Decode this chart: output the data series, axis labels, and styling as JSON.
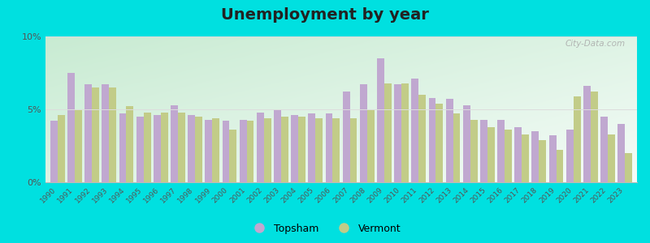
{
  "title": "Unemployment by year",
  "years": [
    1990,
    1991,
    1992,
    1993,
    1994,
    1995,
    1996,
    1997,
    1998,
    1999,
    2000,
    2001,
    2002,
    2003,
    2004,
    2005,
    2006,
    2007,
    2008,
    2009,
    2010,
    2011,
    2012,
    2013,
    2014,
    2015,
    2016,
    2017,
    2018,
    2019,
    2020,
    2021,
    2022,
    2023
  ],
  "topsham": [
    4.2,
    7.5,
    6.7,
    6.7,
    4.7,
    4.5,
    4.6,
    5.3,
    4.6,
    4.3,
    4.2,
    4.3,
    4.8,
    5.0,
    4.6,
    4.7,
    4.7,
    6.2,
    6.7,
    8.5,
    6.7,
    7.1,
    5.8,
    5.7,
    5.3,
    4.3,
    4.3,
    3.8,
    3.5,
    3.2,
    3.6,
    6.6,
    4.5,
    4.0
  ],
  "vermont": [
    4.6,
    5.0,
    6.5,
    6.5,
    5.2,
    4.8,
    4.8,
    4.8,
    4.5,
    4.4,
    3.6,
    4.2,
    4.4,
    4.5,
    4.5,
    4.4,
    4.4,
    4.4,
    5.0,
    6.8,
    6.8,
    6.0,
    5.4,
    4.7,
    4.3,
    3.8,
    3.6,
    3.3,
    2.9,
    2.2,
    5.9,
    6.2,
    3.3,
    2.0
  ],
  "topsham_color": "#c0a8d0",
  "vermont_color": "#c2cc88",
  "bg_color_topleft": "#c8e8c8",
  "bg_color_right": "#e8f5f0",
  "bg_color_bottom": "#f0faf5",
  "outer_bg": "#00e0e0",
  "ylim": [
    0,
    10
  ],
  "yticks": [
    0,
    5,
    10
  ],
  "ytick_labels": [
    "0%",
    "5%",
    "10%"
  ],
  "bar_width": 0.42,
  "title_fontsize": 14,
  "grid_color": "#dddddd"
}
